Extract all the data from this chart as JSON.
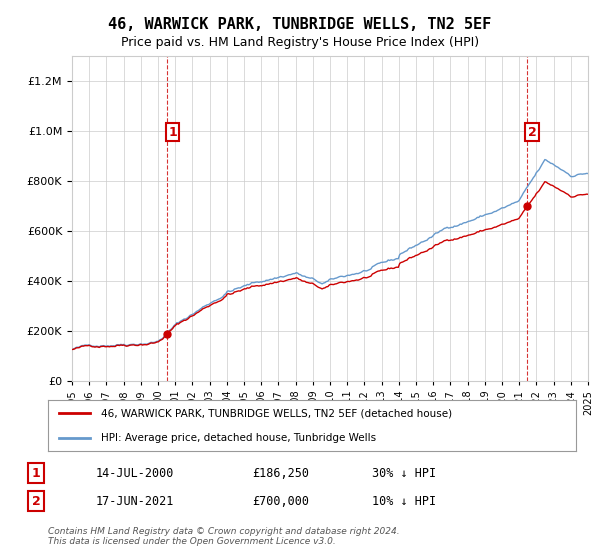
{
  "title": "46, WARWICK PARK, TUNBRIDGE WELLS, TN2 5EF",
  "subtitle": "Price paid vs. HM Land Registry's House Price Index (HPI)",
  "sale1_date": "2000-07-14",
  "sale1_price": 186250,
  "sale1_label": "14-JUL-2000",
  "sale1_pct": "30% ↓ HPI",
  "sale2_date": "2021-06-17",
  "sale2_price": 700000,
  "sale2_label": "17-JUN-2021",
  "sale2_pct": "10% ↓ HPI",
  "legend_house": "46, WARWICK PARK, TUNBRIDGE WELLS, TN2 5EF (detached house)",
  "legend_hpi": "HPI: Average price, detached house, Tunbridge Wells",
  "footer": "Contains HM Land Registry data © Crown copyright and database right 2024.\nThis data is licensed under the Open Government Licence v3.0.",
  "house_color": "#cc0000",
  "hpi_color": "#6699cc",
  "vline_color": "#cc0000",
  "background_color": "#ffffff",
  "ylim_max": 1300000,
  "x_start_year": 1995,
  "x_end_year": 2025
}
